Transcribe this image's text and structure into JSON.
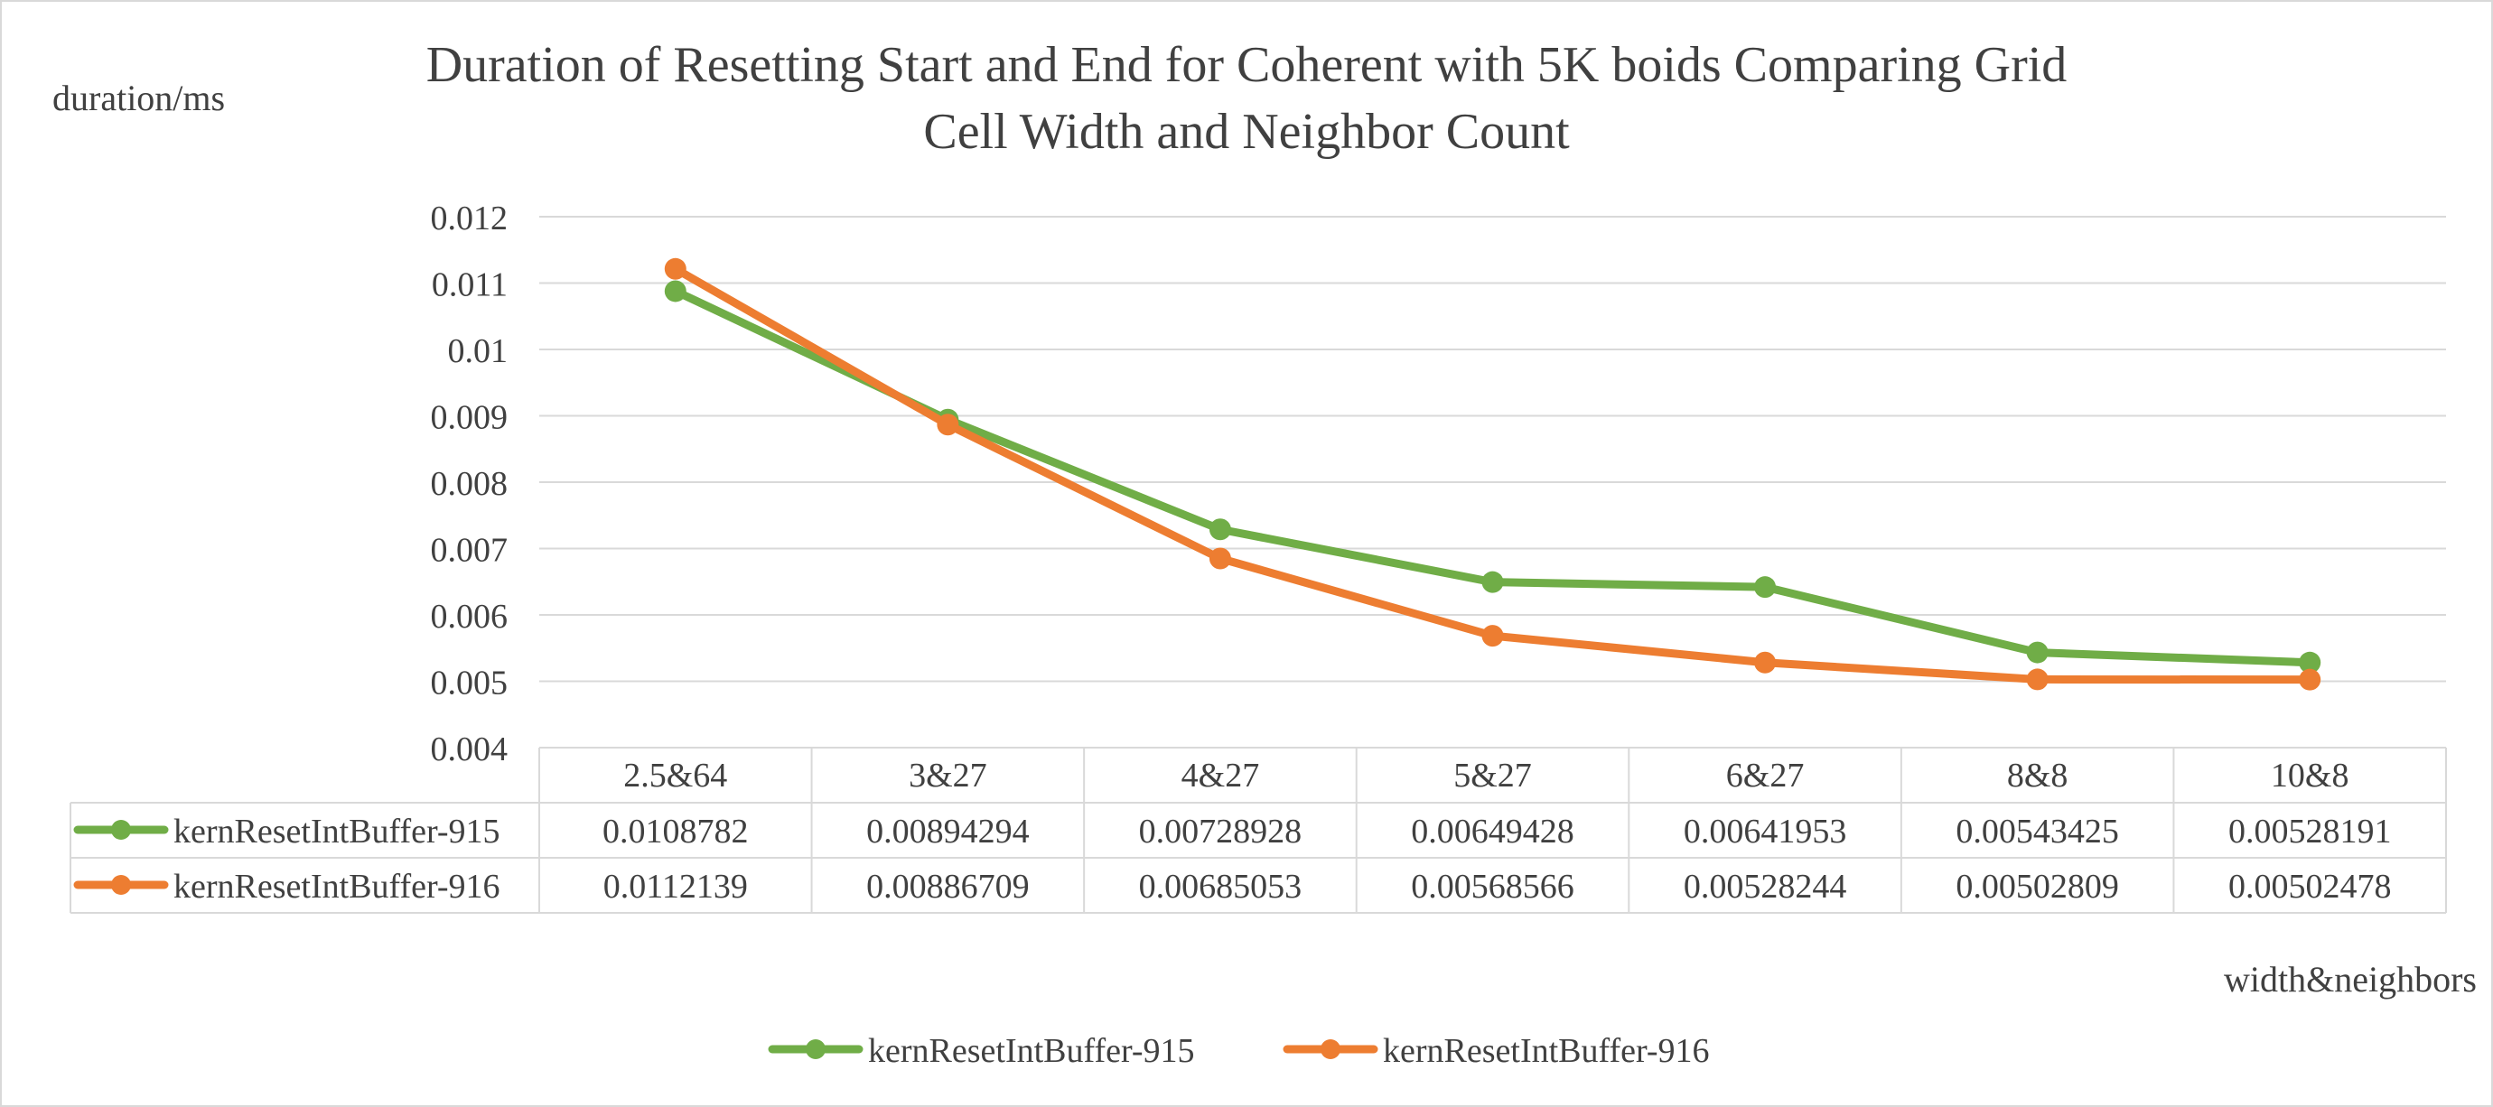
{
  "chart_data": {
    "type": "line",
    "title": "Duration of Resetting Start and End for Coherent with 5K boids Comparing Grid Cell Width and Neighbor Count",
    "title_lines": [
      "Duration of Resetting Start and End for Coherent with 5K boids Comparing Grid",
      "Cell Width and Neighbor Count"
    ],
    "xlabel": "width&neighbors",
    "ylabel": "duration/ms",
    "ylim": [
      0.004,
      0.012
    ],
    "yticks": [
      0.004,
      0.005,
      0.006,
      0.007,
      0.008,
      0.009,
      0.01,
      0.011,
      0.012
    ],
    "categories": [
      "2.5&64",
      "3&27",
      "4&27",
      "5&27",
      "6&27",
      "8&8",
      "10&8"
    ],
    "series": [
      {
        "name": "kernResetIntBuffer-915",
        "color": "#70ad47",
        "values": [
          0.0108782,
          0.00894294,
          0.00728928,
          0.00649428,
          0.00641953,
          0.00543425,
          0.00528191
        ],
        "labels": [
          "0.0108782",
          "0.00894294",
          "0.00728928",
          "0.00649428",
          "0.00641953",
          "0.00543425",
          "0.00528191"
        ]
      },
      {
        "name": "kernResetIntBuffer-916",
        "color": "#ed7d31",
        "values": [
          0.0112139,
          0.00886709,
          0.00685053,
          0.00568566,
          0.00528244,
          0.00502809,
          0.00502478
        ],
        "labels": [
          "0.0112139",
          "0.00886709",
          "0.00685053",
          "0.00568566",
          "0.00528244",
          "0.00502809",
          "0.00502478"
        ]
      }
    ],
    "grid": true,
    "data_table": true,
    "legend_position": "bottom"
  }
}
